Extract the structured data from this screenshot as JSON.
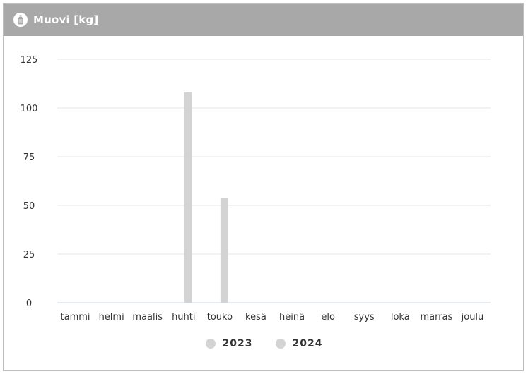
{
  "header": {
    "title": "Muovi [kg]",
    "icon": "bottle-icon"
  },
  "colors": {
    "header_bg": "#a8a8a8",
    "bar_2023": "#d3d3d3",
    "bar_2024": "#d3d3d3",
    "grid": "#e6e6e6",
    "axis": "#c8d4e6"
  },
  "chart_data": {
    "type": "bar",
    "title": "Muovi [kg]",
    "categories": [
      "tammi",
      "helmi",
      "maalis",
      "huhti",
      "touko",
      "kesä",
      "heinä",
      "elo",
      "syys",
      "loka",
      "marras",
      "joulu"
    ],
    "series": [
      {
        "name": "2023",
        "color": "#d3d3d3",
        "values": [
          0,
          0,
          0,
          0,
          0,
          0,
          0,
          0,
          0,
          0,
          0,
          0
        ]
      },
      {
        "name": "2024",
        "color": "#d3d3d3",
        "values": [
          0,
          0,
          0,
          108,
          54,
          0,
          0,
          0,
          0,
          0,
          0,
          0
        ]
      }
    ],
    "ylim": [
      0,
      125
    ],
    "yticks": [
      0,
      25,
      50,
      75,
      100,
      125
    ],
    "grid": true,
    "legend": "bottom-center",
    "xlabel": "",
    "ylabel": ""
  }
}
